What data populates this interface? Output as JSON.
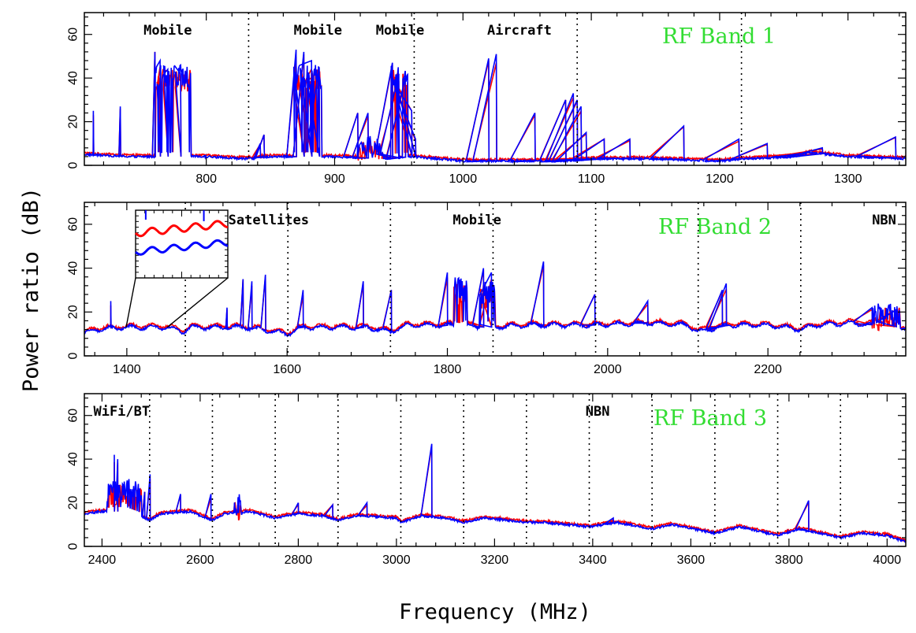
{
  "chart_data": {
    "type": "line",
    "xlabel": "Frequency (MHz)",
    "ylabel": "Power ratio (dB)",
    "colors": {
      "series_a": "#ff0000",
      "series_b": "#0000ff",
      "band_label": "#33dd33",
      "divider": "#000000"
    },
    "series": [
      {
        "name": "red trace",
        "color": "#ff0000"
      },
      {
        "name": "blue trace",
        "color": "#0000ff"
      }
    ],
    "panels": [
      {
        "title": "RF Band 1",
        "xlim": [
          705,
          1345
        ],
        "ylim": [
          0,
          70
        ],
        "xticks": [
          800,
          900,
          1000,
          1100,
          1200,
          1300
        ],
        "yticks": [
          0,
          20,
          40,
          60
        ],
        "dividers": [
          833,
          962,
          1089,
          1217
        ],
        "annotations": [
          {
            "text": "Mobile",
            "x": 770
          },
          {
            "text": "Mobile",
            "x": 887
          },
          {
            "text": "Mobile",
            "x": 951
          },
          {
            "text": "Aircraft",
            "x": 1044
          }
        ],
        "baseline": [
          [
            705,
            5
          ],
          [
            740,
            4
          ],
          [
            760,
            4
          ],
          [
            800,
            4
          ],
          [
            830,
            3
          ],
          [
            850,
            4
          ],
          [
            900,
            4
          ],
          [
            940,
            3
          ],
          [
            960,
            4
          ],
          [
            1000,
            2
          ],
          [
            1050,
            2
          ],
          [
            1080,
            2
          ],
          [
            1100,
            3
          ],
          [
            1150,
            3
          ],
          [
            1200,
            2
          ],
          [
            1220,
            3
          ],
          [
            1260,
            4
          ],
          [
            1270,
            6
          ],
          [
            1300,
            4
          ],
          [
            1345,
            3
          ]
        ],
        "blocks": [
          {
            "range": [
              760,
              788
            ],
            "level": 40
          },
          {
            "range": [
              868,
              890
            ],
            "level": 40
          },
          {
            "range": [
              918,
              938
            ],
            "level": 8
          },
          {
            "range": [
              944,
              950
            ],
            "level": 40
          },
          {
            "range": [
              953,
              957
            ],
            "level": 38
          }
        ],
        "spikes": [
          [
            712,
            25
          ],
          [
            733,
            27
          ],
          [
            760,
            52
          ],
          [
            764,
            48
          ],
          [
            770,
            44
          ],
          [
            780,
            42
          ],
          [
            842,
            10
          ],
          [
            845,
            14
          ],
          [
            870,
            53
          ],
          [
            876,
            52
          ],
          [
            882,
            48
          ],
          [
            888,
            45
          ],
          [
            918,
            24
          ],
          [
            926,
            24
          ],
          [
            945,
            47
          ],
          [
            950,
            42
          ],
          [
            955,
            40
          ],
          [
            960,
            25
          ],
          [
            963,
            12
          ],
          [
            1020,
            49
          ],
          [
            1026,
            51
          ],
          [
            1056,
            24
          ],
          [
            1080,
            30
          ],
          [
            1086,
            33
          ],
          [
            1089,
            30
          ],
          [
            1092,
            27
          ],
          [
            1096,
            15
          ],
          [
            1110,
            12
          ],
          [
            1130,
            12
          ],
          [
            1172,
            18
          ],
          [
            1215,
            12
          ],
          [
            1237,
            10
          ],
          [
            1270,
            6
          ],
          [
            1280,
            8
          ],
          [
            1337,
            13
          ]
        ]
      },
      {
        "title": "RF Band 2",
        "xlim": [
          1347,
          2372
        ],
        "ylim": [
          0,
          70
        ],
        "xticks": [
          1400,
          1600,
          1800,
          2000,
          2200
        ],
        "yticks": [
          0,
          20,
          40,
          60
        ],
        "dividers": [
          1473,
          1601,
          1729,
          1857,
          1985,
          2113,
          2241
        ],
        "annotations": [
          {
            "text": "Satellites",
            "x": 1577
          },
          {
            "text": "Mobile",
            "x": 1837
          },
          {
            "text": "NBN",
            "x": 2345
          }
        ],
        "baseline": [
          [
            1347,
            10
          ],
          [
            1360,
            12
          ],
          [
            1400,
            13
          ],
          [
            1450,
            13
          ],
          [
            1470,
            11
          ],
          [
            1480,
            13
          ],
          [
            1550,
            13
          ],
          [
            1600,
            10
          ],
          [
            1620,
            13
          ],
          [
            1700,
            13
          ],
          [
            1729,
            11
          ],
          [
            1750,
            14
          ],
          [
            1800,
            14
          ],
          [
            1810,
            14
          ],
          [
            1850,
            13
          ],
          [
            1900,
            14
          ],
          [
            1980,
            14
          ],
          [
            2050,
            15
          ],
          [
            2100,
            14
          ],
          [
            2113,
            11
          ],
          [
            2150,
            14
          ],
          [
            2200,
            14
          ],
          [
            2241,
            12
          ],
          [
            2260,
            14
          ],
          [
            2300,
            15
          ],
          [
            2372,
            13
          ]
        ],
        "blocks": [
          {
            "range": [
              1808,
              1825
            ],
            "level": 30
          },
          {
            "range": [
              1840,
              1860
            ],
            "level": 28
          },
          {
            "range": [
              2330,
              2365
            ],
            "level": 18
          }
        ],
        "spikes": [
          [
            1380,
            25
          ],
          [
            1525,
            22
          ],
          [
            1545,
            35
          ],
          [
            1556,
            34
          ],
          [
            1573,
            37
          ],
          [
            1620,
            30
          ],
          [
            1695,
            34
          ],
          [
            1730,
            30
          ],
          [
            1800,
            38
          ],
          [
            1845,
            40
          ],
          [
            1855,
            38
          ],
          [
            1920,
            43
          ],
          [
            1984,
            28
          ],
          [
            2050,
            25
          ],
          [
            2143,
            30
          ],
          [
            2148,
            33
          ],
          [
            2330,
            22
          ],
          [
            2360,
            21
          ]
        ]
      },
      {
        "title": "RF Band 3",
        "xlim": [
          2364,
          4038
        ],
        "ylim": [
          0,
          70
        ],
        "xticks": [
          2400,
          2600,
          2800,
          3000,
          3200,
          3400,
          3600,
          3800,
          4000
        ],
        "yticks": [
          0,
          20,
          40,
          60
        ],
        "dividers": [
          2497,
          2625,
          2753,
          2881,
          3009,
          3137,
          3265,
          3393,
          3521,
          3649,
          3777,
          3905
        ],
        "annotations": [
          {
            "text": "WiFi/BT",
            "x": 2440
          },
          {
            "text": "NBN",
            "x": 3410
          }
        ],
        "baseline": [
          [
            2364,
            15
          ],
          [
            2400,
            16
          ],
          [
            2450,
            16
          ],
          [
            2497,
            12
          ],
          [
            2520,
            15
          ],
          [
            2580,
            16
          ],
          [
            2625,
            12
          ],
          [
            2650,
            15
          ],
          [
            2700,
            16
          ],
          [
            2753,
            13
          ],
          [
            2800,
            15
          ],
          [
            2850,
            14
          ],
          [
            2881,
            12
          ],
          [
            2920,
            14
          ],
          [
            3000,
            13
          ],
          [
            3009,
            11
          ],
          [
            3050,
            14
          ],
          [
            3100,
            13
          ],
          [
            3137,
            11
          ],
          [
            3180,
            13
          ],
          [
            3265,
            11
          ],
          [
            3300,
            11
          ],
          [
            3393,
            9
          ],
          [
            3450,
            11
          ],
          [
            3521,
            8
          ],
          [
            3560,
            10
          ],
          [
            3649,
            6
          ],
          [
            3700,
            9
          ],
          [
            3777,
            5
          ],
          [
            3820,
            8
          ],
          [
            3905,
            4
          ],
          [
            3950,
            6
          ],
          [
            4000,
            5
          ],
          [
            4038,
            2
          ]
        ],
        "blocks": [
          {
            "range": [
              2410,
              2480
            ],
            "level": 25
          },
          {
            "range": [
              2670,
              2685
            ],
            "level": 18
          }
        ],
        "spikes": [
          [
            2425,
            42
          ],
          [
            2432,
            40
          ],
          [
            2487,
            25
          ],
          [
            2498,
            33
          ],
          [
            2560,
            24
          ],
          [
            2622,
            24
          ],
          [
            2800,
            20
          ],
          [
            2870,
            19
          ],
          [
            2940,
            20
          ],
          [
            3072,
            47
          ],
          [
            3442,
            13
          ],
          [
            3840,
            21
          ]
        ]
      }
    ]
  }
}
